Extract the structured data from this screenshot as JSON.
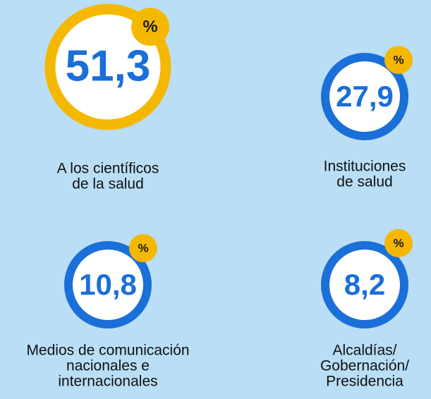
{
  "items": [
    {
      "value": "51,3",
      "unit": "%",
      "label": [
        "A los científicos",
        "de la salud"
      ]
    },
    {
      "value": "27,9",
      "unit": "%",
      "label": [
        "Instituciones",
        "de salud"
      ]
    },
    {
      "value": "10,8",
      "unit": "%",
      "label": [
        "Medios de comunicación",
        "nacionales e",
        "internacionales"
      ]
    },
    {
      "value": "8,2",
      "unit": "%",
      "label": [
        "Alcaldías/",
        "Gobernación/",
        "Presidencia"
      ]
    }
  ]
}
